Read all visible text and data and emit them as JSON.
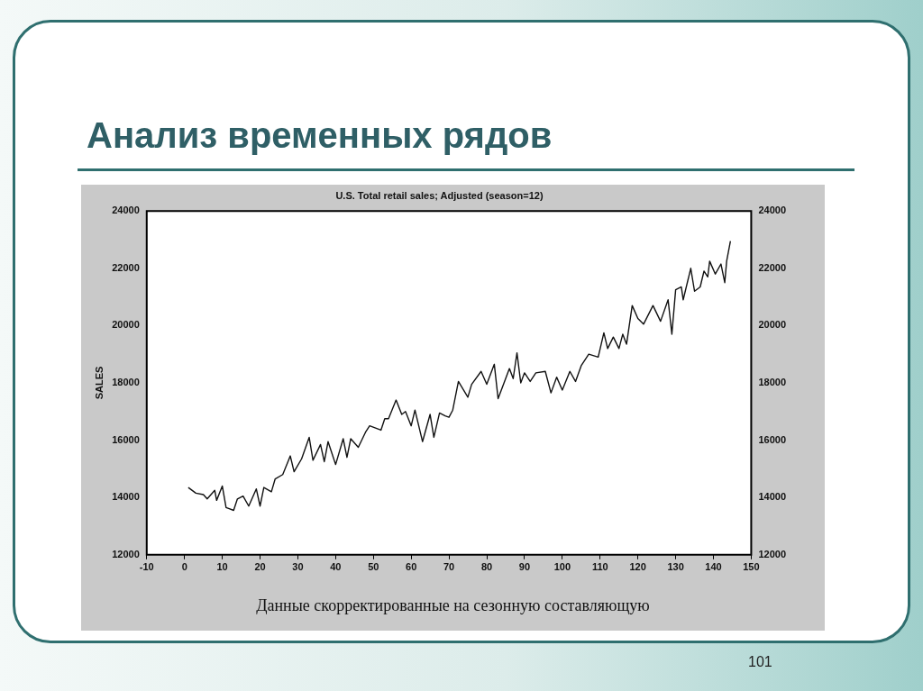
{
  "chart_data": {
    "type": "line",
    "title": "U.S. Total retail sales; Adjusted (season=12)",
    "ylabel": "SALES",
    "annotations": [
      "Анализ временных рядов",
      "Данные скорректированные на сезонную составляющую",
      "101"
    ],
    "series": [
      {
        "color": "#111111",
        "x": [
          1,
          3,
          5,
          6,
          8,
          8.5,
          10,
          11,
          13,
          14,
          15.5,
          17,
          19,
          20,
          21,
          23,
          24,
          26,
          28,
          29,
          31,
          33,
          34,
          36,
          37,
          38,
          40,
          42,
          43,
          44,
          46,
          48,
          49,
          52,
          53,
          54,
          56,
          57.5,
          58.5,
          60,
          61,
          63,
          65,
          66,
          67.5,
          69,
          70,
          71,
          72.5,
          75,
          76,
          78.5,
          80,
          82,
          83,
          85,
          86,
          87,
          88,
          89,
          90,
          91.5,
          93,
          95.5,
          97,
          98.5,
          100,
          102,
          103.5,
          105,
          107,
          109.5,
          111,
          112,
          113.5,
          115,
          116,
          117,
          118.5,
          120,
          121.5,
          124,
          126,
          128,
          129,
          130,
          131.5,
          132,
          134,
          135,
          136.5,
          137.5,
          138.5,
          139,
          140.5,
          142,
          143,
          143.5,
          144.5
        ],
        "values": [
          14350,
          14150,
          14100,
          13950,
          14250,
          13900,
          14400,
          13650,
          13550,
          13950,
          14050,
          13700,
          14300,
          13700,
          14350,
          14200,
          14650,
          14800,
          15450,
          14900,
          15350,
          16100,
          15300,
          15850,
          15250,
          15950,
          15150,
          16050,
          15400,
          16050,
          15750,
          16300,
          16500,
          16350,
          16750,
          16750,
          17400,
          16900,
          17000,
          16500,
          17050,
          15950,
          16900,
          16100,
          16950,
          16850,
          16800,
          17050,
          18050,
          17500,
          17950,
          18400,
          17950,
          18650,
          17450,
          18150,
          18500,
          18150,
          19050,
          18000,
          18350,
          18050,
          18350,
          18400,
          17650,
          18200,
          17750,
          18400,
          18050,
          18600,
          19000,
          18900,
          19750,
          19200,
          19600,
          19200,
          19700,
          19350,
          20700,
          20250,
          20050,
          20700,
          20150,
          20900,
          19700,
          21250,
          21350,
          20900,
          22000,
          21200,
          21350,
          21900,
          21700,
          22250,
          21800,
          22150,
          21500,
          22250,
          22950
        ]
      }
    ],
    "xlim": [
      -10,
      150
    ],
    "xticks": [
      -10,
      0,
      10,
      20,
      30,
      40,
      50,
      60,
      70,
      80,
      90,
      100,
      110,
      120,
      130,
      140,
      150
    ],
    "ylim": [
      12000,
      24000
    ],
    "yticks": [
      12000,
      14000,
      16000,
      18000,
      20000,
      22000,
      24000
    ],
    "y2lim": [
      12000,
      24000
    ],
    "y2ticks": [
      12000,
      14000,
      16000,
      18000,
      20000,
      22000,
      24000
    ],
    "grid": false,
    "legend": false,
    "marker": "none",
    "line_style": "solid"
  }
}
